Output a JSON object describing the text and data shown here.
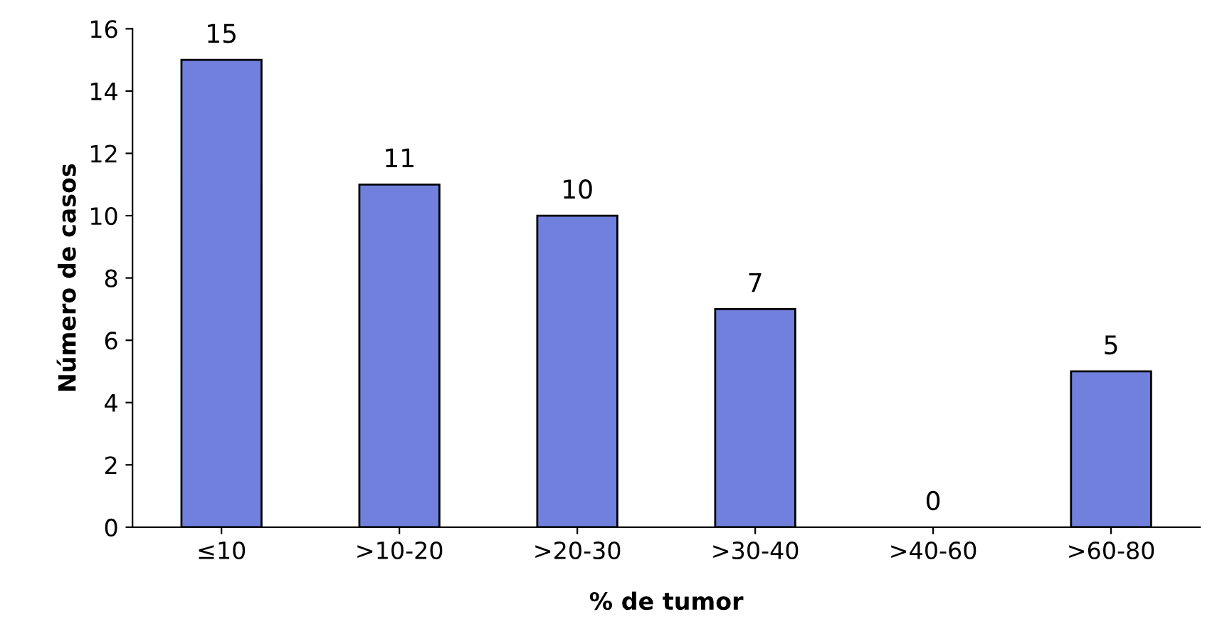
{
  "chart_data": {
    "type": "bar",
    "xlabel": "% de tumor",
    "ylabel": "Número de casos",
    "categories": [
      "≤10",
      ">10-20",
      ">20-30",
      ">30-40",
      ">40-60",
      ">60-80"
    ],
    "values": [
      15,
      11,
      10,
      7,
      0,
      5
    ],
    "color": "#7080dc",
    "ylim": [
      0,
      16
    ],
    "yticks": [
      0,
      2,
      4,
      6,
      8,
      10,
      12,
      14,
      16
    ],
    "grid": false,
    "data_labels": true
  }
}
